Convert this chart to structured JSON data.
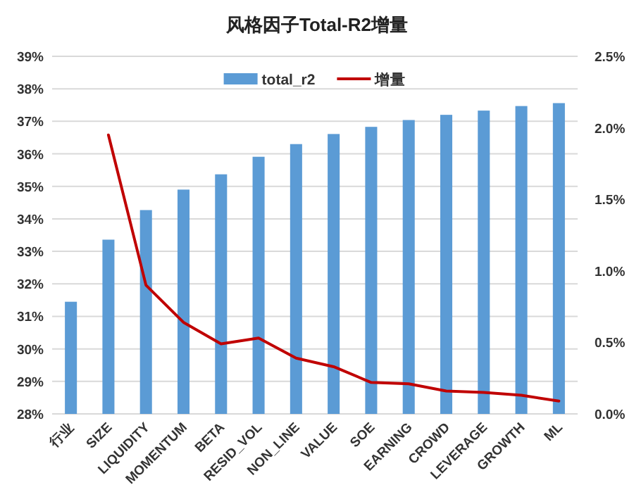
{
  "chart_data": {
    "type": "bar",
    "title": "风格因子Total-R2增量",
    "categories": [
      "行业",
      "SIZE",
      "LIQUIDITY",
      "MOMENTUM",
      "BETA",
      "RESID_VOL",
      "NON_LINE",
      "VALUE",
      "SOE",
      "EARNING",
      "CROWD",
      "LEVERAGE",
      "GROWTH",
      "ML"
    ],
    "series": [
      {
        "name": "total_r2",
        "color": "#5b9bd5",
        "values": [
          31.45,
          33.36,
          34.27,
          34.9,
          35.37,
          35.91,
          36.3,
          36.61,
          36.83,
          37.04,
          37.2,
          37.33,
          37.47,
          37.56
        ]
      },
      {
        "name": "增量",
        "type": "line",
        "axis": "y2",
        "color": "#c00000",
        "values": [
          null,
          1.95,
          0.9,
          0.64,
          0.49,
          0.53,
          0.39,
          0.33,
          0.22,
          0.21,
          0.16,
          0.15,
          0.13,
          0.09
        ]
      }
    ],
    "ylim": [
      28,
      39
    ],
    "yticks": [
      {
        "value": 28,
        "label": "28%"
      },
      {
        "value": 29,
        "label": "29%"
      },
      {
        "value": 30,
        "label": "30%"
      },
      {
        "value": 31,
        "label": "31%"
      },
      {
        "value": 32,
        "label": "32%"
      },
      {
        "value": 33,
        "label": "33%"
      },
      {
        "value": 34,
        "label": "34%"
      },
      {
        "value": 35,
        "label": "35%"
      },
      {
        "value": 36,
        "label": "36%"
      },
      {
        "value": 37,
        "label": "37%"
      },
      {
        "value": 38,
        "label": "38%"
      },
      {
        "value": 39,
        "label": "39%"
      }
    ],
    "y2lim": [
      0,
      2.5
    ],
    "y2ticks": [
      {
        "value": 0,
        "label": "0.0%"
      },
      {
        "value": 0.5,
        "label": "0.5%"
      },
      {
        "value": 1,
        "label": "1.0%"
      },
      {
        "value": 1.5,
        "label": "1.5%"
      },
      {
        "value": 2,
        "label": "2.0%"
      },
      {
        "value": 2.5,
        "label": "2.5%"
      }
    ],
    "grid": "y",
    "legend": "top"
  }
}
